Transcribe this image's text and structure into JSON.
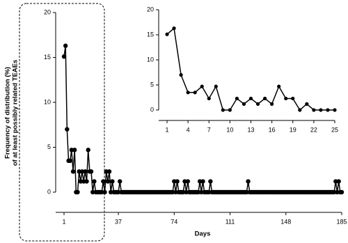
{
  "chart_data": [
    {
      "type": "line",
      "ylabel": [
        "Frequency of distribution (%)",
        "of at least possibly related TEAEs"
      ],
      "xlabel": "Days",
      "color": "#000000",
      "x": [
        1,
        2,
        3,
        4,
        5,
        6,
        7,
        8,
        9,
        10,
        11,
        12,
        13,
        14,
        15,
        16,
        17,
        18,
        19,
        20,
        21,
        22,
        23,
        24,
        25,
        26,
        27,
        28,
        29,
        30,
        31,
        32,
        33,
        34,
        35,
        36,
        37,
        38,
        39,
        40,
        41,
        42,
        43,
        44,
        45,
        46,
        47,
        48,
        49,
        50,
        51,
        52,
        53,
        54,
        55,
        56,
        57,
        58,
        59,
        60,
        61,
        62,
        63,
        64,
        65,
        66,
        67,
        68,
        69,
        70,
        71,
        72,
        73,
        74,
        75,
        76,
        77,
        78,
        79,
        80,
        81,
        82,
        83,
        84,
        85,
        86,
        87,
        88,
        89,
        90,
        91,
        92,
        93,
        94,
        95,
        96,
        97,
        98,
        99,
        100,
        101,
        102,
        103,
        104,
        105,
        106,
        107,
        108,
        109,
        110,
        111,
        112,
        113,
        114,
        115,
        116,
        117,
        118,
        119,
        120,
        121,
        122,
        123,
        124,
        125,
        126,
        127,
        128,
        129,
        130,
        131,
        132,
        133,
        134,
        135,
        136,
        137,
        138,
        139,
        140,
        141,
        142,
        143,
        144,
        145,
        146,
        147,
        148,
        149,
        150,
        151,
        152,
        153,
        154,
        155,
        156,
        157,
        158,
        159,
        160,
        161,
        162,
        163,
        164,
        165,
        166,
        167,
        168,
        169,
        170,
        171,
        172,
        173,
        174,
        175,
        176,
        177,
        178,
        179,
        180,
        181,
        182,
        183,
        184,
        185
      ],
      "values": [
        15.1,
        16.3,
        7.0,
        3.5,
        3.5,
        4.7,
        2.3,
        4.7,
        0,
        0,
        2.3,
        1.2,
        2.3,
        1.2,
        2.3,
        1.2,
        4.7,
        2.3,
        2.3,
        0,
        1.2,
        0,
        0,
        0,
        0,
        0,
        1.2,
        0,
        2.3,
        1.2,
        2.3,
        0,
        1.2,
        0,
        0,
        0,
        0,
        1.2,
        0,
        0,
        0,
        0,
        0,
        0,
        0,
        0,
        0,
        0,
        0,
        0,
        0,
        0,
        0,
        0,
        0,
        0,
        0,
        0,
        0,
        0,
        0,
        0,
        0,
        0,
        0,
        0,
        0,
        0,
        0,
        0,
        0,
        0,
        0,
        1.2,
        0,
        1.2,
        0,
        0,
        0,
        0,
        1.2,
        0,
        1.2,
        0,
        0,
        0,
        0,
        0,
        0,
        0,
        1.2,
        0,
        1.2,
        0,
        0,
        0,
        0,
        1.2,
        0,
        0,
        0,
        0,
        0,
        0,
        0,
        0,
        0,
        0,
        0,
        0,
        0,
        0,
        0,
        0,
        0,
        0,
        0,
        0,
        0,
        0,
        0,
        0,
        1.2,
        0,
        0,
        0,
        0,
        0,
        0,
        0,
        0,
        0,
        0,
        0,
        0,
        0,
        0,
        0,
        0,
        0,
        0,
        0,
        0,
        0,
        0,
        0,
        0,
        0,
        0,
        0,
        0,
        0,
        0,
        0,
        0,
        0,
        0,
        0,
        0,
        0,
        0,
        0,
        0,
        0,
        0,
        0,
        0,
        0,
        0,
        0,
        0,
        0,
        0,
        0,
        0,
        0,
        0,
        0,
        0,
        0,
        1.2,
        0,
        1.2,
        0,
        0
      ],
      "xlim": [
        1,
        185
      ],
      "xticks": [
        1,
        37,
        74,
        111,
        148,
        185
      ],
      "ylim": [
        0,
        20
      ],
      "yticks": [
        0,
        5,
        10,
        15,
        20
      ]
    },
    {
      "type": "line",
      "color": "#000000",
      "x": [
        1,
        2,
        3,
        4,
        5,
        6,
        7,
        8,
        9,
        10,
        11,
        12,
        13,
        14,
        15,
        16,
        17,
        18,
        19,
        20,
        21,
        22,
        23,
        24,
        25
      ],
      "values": [
        15.1,
        16.3,
        7.0,
        3.5,
        3.5,
        4.7,
        2.3,
        4.7,
        0,
        0,
        2.3,
        1.2,
        2.3,
        1.2,
        2.3,
        1.2,
        4.7,
        2.3,
        2.3,
        0,
        1.2,
        0,
        0,
        0,
        0
      ],
      "xlim": [
        1,
        25
      ],
      "xticks": [
        1,
        4,
        7,
        10,
        13,
        16,
        19,
        22,
        25
      ],
      "ylim": [
        0,
        20
      ],
      "yticks": [
        0,
        5,
        10,
        15,
        20
      ]
    }
  ]
}
